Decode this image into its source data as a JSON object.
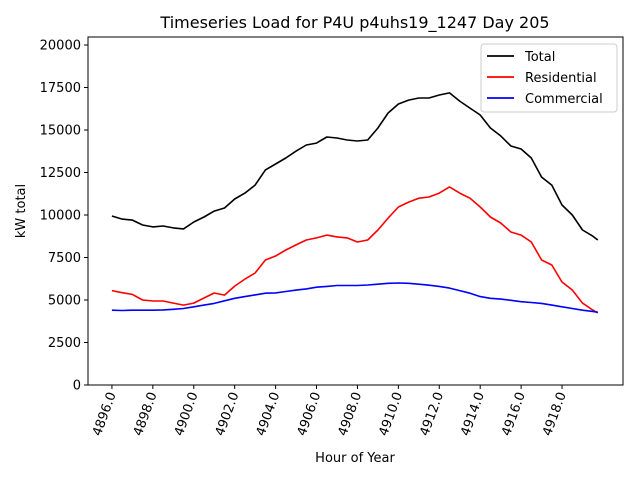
{
  "chart_data": {
    "type": "line",
    "title": "Timeseries Load for P4U p4uhs19_1247  Day 205",
    "xlabel": "Hour of Year",
    "ylabel": "kW total",
    "xlim": [
      4894.83,
      4920.98
    ],
    "ylim": [
      0,
      20470
    ],
    "xticks": [
      4896,
      4898,
      4900,
      4902,
      4904,
      4906,
      4908,
      4910,
      4912,
      4914,
      4916,
      4918
    ],
    "xtick_labels": [
      "4896.0",
      "4898.0",
      "4900.0",
      "4902.0",
      "4904.0",
      "4906.0",
      "4908.0",
      "4910.0",
      "4912.0",
      "4914.0",
      "4916.0",
      "4918.0"
    ],
    "yticks": [
      0,
      2500,
      5000,
      7500,
      10000,
      12500,
      15000,
      17500,
      20000
    ],
    "ytick_labels": [
      "0",
      "2500",
      "5000",
      "7500",
      "10000",
      "12500",
      "15000",
      "17500",
      "20000"
    ],
    "grid": false,
    "legend_placement": "top-right",
    "x": [
      4896,
      4896.5,
      4897,
      4897.5,
      4898,
      4898.5,
      4899,
      4899.5,
      4900,
      4900.5,
      4901,
      4901.5,
      4902,
      4902.5,
      4903,
      4903.5,
      4904,
      4904.5,
      4905,
      4905.5,
      4906,
      4906.5,
      4907,
      4907.5,
      4908,
      4908.5,
      4909,
      4909.5,
      4910,
      4910.5,
      4911,
      4911.5,
      4912,
      4912.5,
      4913,
      4913.5,
      4914,
      4914.5,
      4915,
      4915.5,
      4916,
      4916.5,
      4917,
      4917.5,
      4918,
      4918.5,
      4919,
      4919.5,
      4919.75
    ],
    "series": [
      {
        "name": "Total",
        "color": "#000000",
        "values": [
          9940,
          9760,
          9700,
          9410,
          9300,
          9350,
          9240,
          9180,
          9590,
          9880,
          10230,
          10410,
          10940,
          11290,
          11760,
          12650,
          13000,
          13350,
          13760,
          14120,
          14230,
          14590,
          14530,
          14410,
          14350,
          14410,
          15120,
          16000,
          16530,
          16760,
          16880,
          16880,
          17060,
          17180,
          16700,
          16290,
          15880,
          15120,
          14650,
          14060,
          13880,
          13350,
          12230,
          11760,
          10590,
          10000,
          9120,
          8760,
          8530
        ]
      },
      {
        "name": "Residential",
        "color": "#ff0000",
        "values": [
          5550,
          5430,
          5330,
          5000,
          4940,
          4940,
          4820,
          4700,
          4820,
          5120,
          5410,
          5290,
          5820,
          6230,
          6590,
          7350,
          7590,
          7940,
          8240,
          8530,
          8650,
          8820,
          8710,
          8650,
          8410,
          8530,
          9120,
          9820,
          10470,
          10760,
          10990,
          11060,
          11290,
          11650,
          11290,
          10990,
          10470,
          9880,
          9530,
          9000,
          8820,
          8410,
          7350,
          7060,
          6060,
          5590,
          4820,
          4410,
          4240
        ]
      },
      {
        "name": "Commercial",
        "color": "#0000ff",
        "values": [
          4400,
          4380,
          4400,
          4400,
          4400,
          4420,
          4450,
          4500,
          4600,
          4700,
          4800,
          4950,
          5100,
          5200,
          5300,
          5400,
          5420,
          5500,
          5580,
          5650,
          5750,
          5800,
          5850,
          5850,
          5850,
          5880,
          5930,
          5980,
          6000,
          5980,
          5930,
          5870,
          5800,
          5700,
          5550,
          5400,
          5200,
          5100,
          5050,
          4980,
          4900,
          4850,
          4800,
          4700,
          4600,
          4500,
          4400,
          4330,
          4280
        ]
      }
    ]
  }
}
